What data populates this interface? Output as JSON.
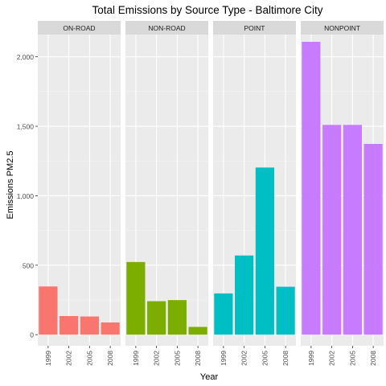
{
  "chart_data": {
    "type": "bar",
    "title": "Total Emissions by Source Type - Baltimore City",
    "xlabel": "Year",
    "ylabel": "Emissions PM2.5",
    "categories": [
      "1999",
      "2002",
      "2005",
      "2008"
    ],
    "ylim": [
      -80,
      2160
    ],
    "yticks": [
      0,
      500,
      1000,
      1500,
      2000
    ],
    "ytick_labels": [
      "0",
      "500",
      "1,000",
      "1,500",
      "2,000"
    ],
    "grid": true,
    "legend": "none",
    "panels": [
      {
        "name": "ON-ROAD",
        "color": "#F8766D",
        "values": [
          347,
          134,
          131,
          88
        ]
      },
      {
        "name": "NON-ROAD",
        "color": "#7CAE00",
        "values": [
          523,
          241,
          249,
          56
        ]
      },
      {
        "name": "POINT",
        "color": "#00BFC4",
        "values": [
          297,
          570,
          1203,
          345
        ]
      },
      {
        "name": "NONPOINT",
        "color": "#C77CFF",
        "values": [
          2108,
          1510,
          1510,
          1373
        ]
      }
    ]
  }
}
